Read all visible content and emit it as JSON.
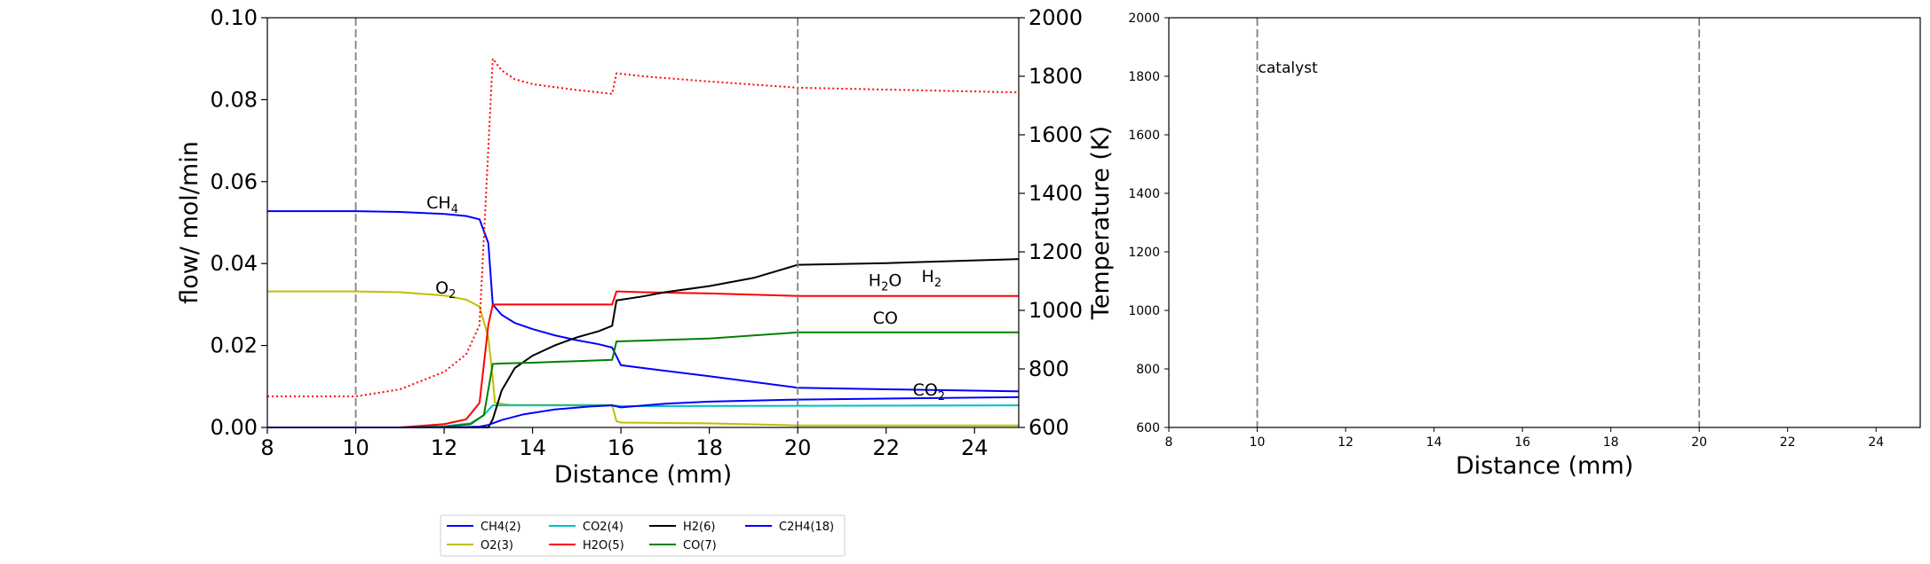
{
  "chart_data": [
    {
      "type": "line",
      "xlabel": "Distance (mm)",
      "ylabel": "flow/ mol/min",
      "ylabel_right": "Temperature (K)",
      "xlim": [
        8,
        25
      ],
      "ylim": [
        0,
        0.1
      ],
      "ylim_right": [
        600,
        2000
      ],
      "xticks": [
        "8",
        "10",
        "12",
        "14",
        "16",
        "18",
        "20",
        "22",
        "24"
      ],
      "yticks": [
        "0.00",
        "0.02",
        "0.04",
        "0.06",
        "0.08",
        "0.10"
      ],
      "yticks_right": [
        "600",
        "800",
        "1000",
        "1200",
        "1400",
        "1600",
        "1800",
        "2000"
      ],
      "vlines": [
        10,
        20
      ],
      "grid": false,
      "legend_position": "bottom-center",
      "series": [
        {
          "name": "CH4(2)",
          "color": "#0000ff",
          "x": [
            8,
            10,
            11,
            12,
            12.5,
            12.8,
            13.0,
            13.1,
            13.3,
            13.6,
            14,
            14.5,
            15,
            15.5,
            15.8,
            16,
            16.5,
            18,
            20,
            22,
            25
          ],
          "y": [
            0.0528,
            0.0528,
            0.0526,
            0.0521,
            0.0516,
            0.0508,
            0.045,
            0.03,
            0.0275,
            0.0255,
            0.024,
            0.0225,
            0.0213,
            0.0203,
            0.0195,
            0.0152,
            0.0145,
            0.0125,
            0.0097,
            0.0093,
            0.0088
          ]
        },
        {
          "name": "O2(3)",
          "color": "#bfbf00",
          "x": [
            8,
            10,
            11,
            12,
            12.5,
            12.8,
            13.0,
            13.1,
            13.15,
            13.5,
            15,
            15.8,
            15.9,
            16,
            18,
            20,
            25
          ],
          "y": [
            0.0332,
            0.0332,
            0.033,
            0.0322,
            0.0312,
            0.0295,
            0.022,
            0.012,
            0.006,
            0.0055,
            0.0055,
            0.0055,
            0.0015,
            0.0012,
            0.001,
            0.0005,
            0.0005
          ]
        },
        {
          "name": "CO2(4)",
          "color": "#00bfbf",
          "x": [
            8,
            11,
            12,
            12.6,
            12.9,
            13.1,
            15.8,
            16,
            25
          ],
          "y": [
            0,
            0,
            0.0003,
            0.001,
            0.003,
            0.0054,
            0.0054,
            0.0052,
            0.0054
          ]
        },
        {
          "name": "H2O(5)",
          "color": "#ff0000",
          "x": [
            8,
            11,
            12,
            12.5,
            12.8,
            13.0,
            13.1,
            13.5,
            15,
            15.8,
            15.9,
            16.5,
            18,
            20,
            25
          ],
          "y": [
            0,
            0,
            0.0008,
            0.002,
            0.006,
            0.025,
            0.03,
            0.03,
            0.03,
            0.03,
            0.0332,
            0.033,
            0.0327,
            0.0321,
            0.0321
          ]
        },
        {
          "name": "H2(6)",
          "color": "#000000",
          "x": [
            8,
            13.0,
            13.1,
            13.3,
            13.6,
            14,
            14.5,
            15,
            15.5,
            15.8,
            15.9,
            16.5,
            17,
            18,
            19,
            20,
            22,
            25
          ],
          "y": [
            0,
            0,
            0.002,
            0.009,
            0.0145,
            0.0175,
            0.02,
            0.022,
            0.0235,
            0.0248,
            0.031,
            0.032,
            0.033,
            0.0345,
            0.0365,
            0.0397,
            0.0401,
            0.0411
          ]
        },
        {
          "name": "CO(7)",
          "color": "#008000",
          "x": [
            8,
            11,
            12,
            12.6,
            12.9,
            13.1,
            13.3,
            14,
            15,
            15.8,
            15.9,
            16.5,
            18,
            20,
            25
          ],
          "y": [
            0,
            0,
            0.0002,
            0.0008,
            0.003,
            0.0155,
            0.0156,
            0.0158,
            0.0162,
            0.0165,
            0.021,
            0.0212,
            0.0217,
            0.0232,
            0.0232
          ]
        },
        {
          "name": "C2H4(18)",
          "color": "#0000ff",
          "x": [
            8,
            12,
            12.8,
            13.0,
            13.3,
            13.8,
            14.5,
            15.3,
            15.8,
            16.0,
            17,
            18,
            20,
            25
          ],
          "y": [
            0,
            0,
            0.0002,
            0.0006,
            0.0018,
            0.0032,
            0.0044,
            0.0051,
            0.0054,
            0.0049,
            0.0058,
            0.0063,
            0.0068,
            0.0074
          ]
        }
      ],
      "temperature": {
        "color": "#ff0000",
        "style": "dotted",
        "x": [
          8,
          10,
          11,
          12,
          12.5,
          12.8,
          12.95,
          13.1,
          13.3,
          13.6,
          14,
          15,
          15.8,
          15.9,
          16.5,
          18,
          20,
          25
        ],
        "y": [
          706,
          706,
          730,
          790,
          850,
          950,
          1400,
          1860,
          1820,
          1790,
          1773,
          1753,
          1740,
          1810,
          1800,
          1782,
          1761,
          1745
        ]
      },
      "annotations": [
        {
          "text": "CH",
          "sub": "4",
          "color": "#0000ff",
          "x": 11.6,
          "y": 0.0535
        },
        {
          "text": "O",
          "sub": "2",
          "color": "#bfbf00",
          "x": 11.8,
          "y": 0.0327
        },
        {
          "text": "H",
          "sub": "2",
          "suffix": "O",
          "color": "#ff0000",
          "x": 21.6,
          "y": 0.0345
        },
        {
          "text": "H",
          "sub": "2",
          "color": "#000000",
          "x": 22.8,
          "y": 0.0355
        },
        {
          "text": "CO",
          "sub": "",
          "color": "#008000",
          "x": 21.7,
          "y": 0.0253
        },
        {
          "text": "CO",
          "sub": "2",
          "color": "#00bfff",
          "x": 22.6,
          "y": 0.0078
        }
      ]
    },
    {
      "type": "line",
      "xlabel": "Distance (mm)",
      "ylabel": "",
      "xlim": [
        8,
        25
      ],
      "ylim": [
        600,
        2000
      ],
      "xticks": [
        "8",
        "10",
        "12",
        "14",
        "16",
        "18",
        "20",
        "22",
        "24"
      ],
      "yticks": [
        "600",
        "800",
        "1000",
        "1200",
        "1400",
        "1600",
        "1800",
        "2000"
      ],
      "vlines": [
        10,
        20
      ],
      "grid": false,
      "annotations": [
        {
          "text": "catalyst",
          "x": 10,
          "y": 1830
        }
      ]
    }
  ]
}
